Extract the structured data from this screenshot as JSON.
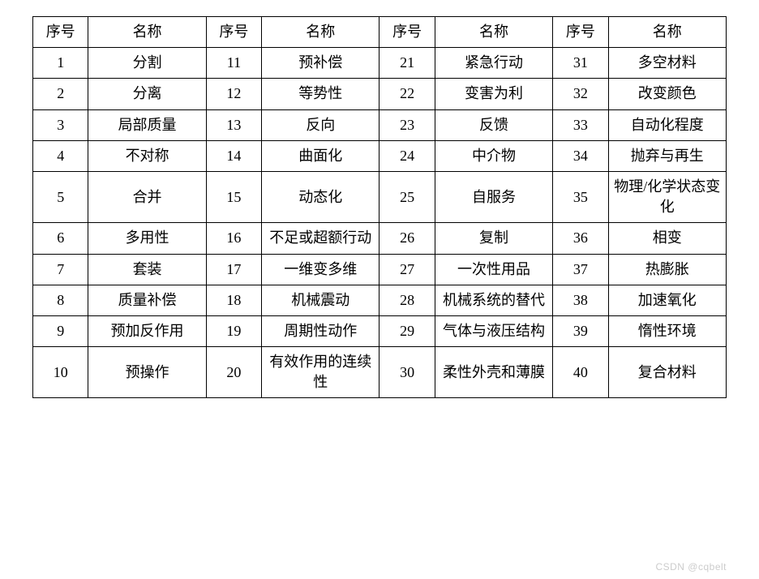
{
  "table": {
    "headers": [
      "序号",
      "名称",
      "序号",
      "名称",
      "序号",
      "名称",
      "序号",
      "名称"
    ],
    "rows": [
      [
        "1",
        "分割",
        "11",
        "预补偿",
        "21",
        "紧急行动",
        "31",
        "多空材料"
      ],
      [
        "2",
        "分离",
        "12",
        "等势性",
        "22",
        "变害为利",
        "32",
        "改变颜色"
      ],
      [
        "3",
        "局部质量",
        "13",
        "反向",
        "23",
        "反馈",
        "33",
        "自动化程度"
      ],
      [
        "4",
        "不对称",
        "14",
        "曲面化",
        "24",
        "中介物",
        "34",
        "抛弃与再生"
      ],
      [
        "5",
        "合并",
        "15",
        "动态化",
        "25",
        "自服务",
        "35",
        "物理/化学状态变化"
      ],
      [
        "6",
        "多用性",
        "16",
        "不足或超额行动",
        "26",
        "复制",
        "36",
        "相变"
      ],
      [
        "7",
        "套装",
        "17",
        "一维变多维",
        "27",
        "一次性用品",
        "37",
        "热膨胀"
      ],
      [
        "8",
        "质量补偿",
        "18",
        "机械震动",
        "28",
        "机械系统的替代",
        "38",
        "加速氧化"
      ],
      [
        "9",
        "预加反作用",
        "19",
        "周期性动作",
        "29",
        "气体与液压结构",
        "39",
        "惰性环境"
      ],
      [
        "10",
        "预操作",
        "20",
        "有效作用的连续性",
        "30",
        "柔性外壳和薄膜",
        "40",
        "复合材料"
      ]
    ],
    "col_widths_percent": [
      8,
      17,
      8,
      17,
      8,
      17,
      8,
      17
    ],
    "border_color": "#000000",
    "font_size_pt": 18,
    "text_color": "#000000",
    "background_color": "#ffffff"
  },
  "watermark": "CSDN @cqbelt"
}
